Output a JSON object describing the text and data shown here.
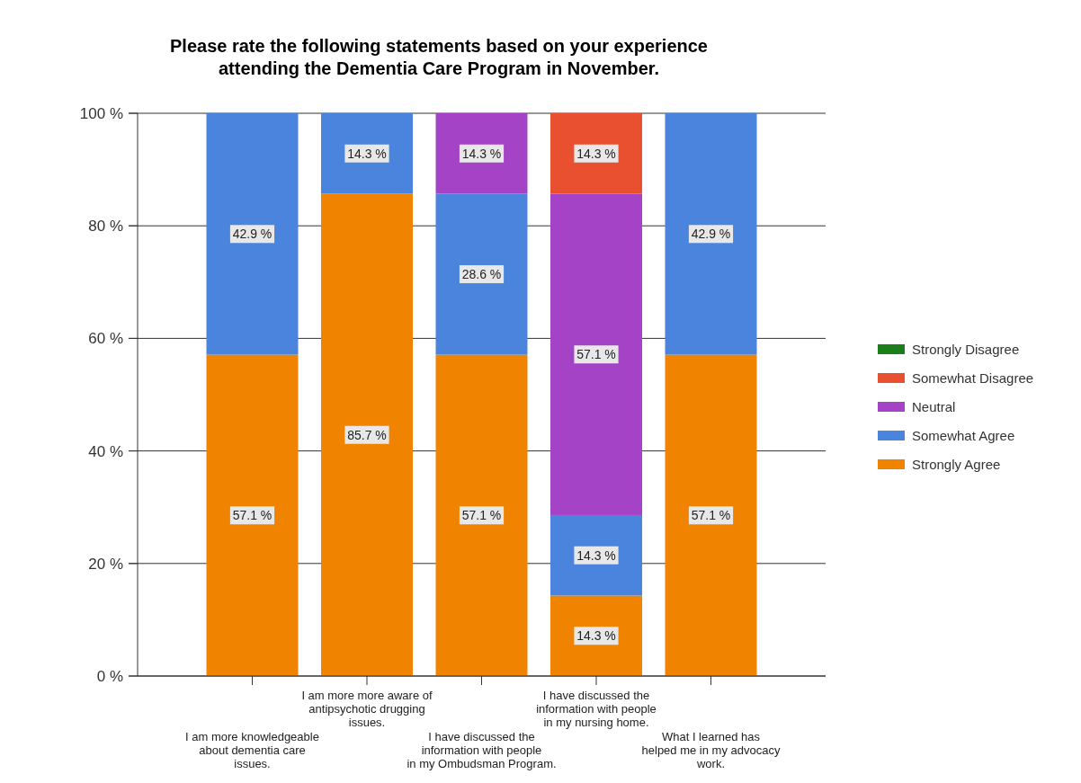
{
  "chart_data": {
    "type": "bar",
    "stacked": true,
    "title": "Please rate the following statements based on your experience attending the Dementia Care Program in November.",
    "categories": [
      "I am more knowledgeable about dementia care issues.",
      "I am more more aware of antipsychotic drugging issues.",
      "I have discussed the information with people in my Ombudsman Program.",
      "I have discussed the information with people in my nursing home.",
      "What I learned has helped me in my advocacy work."
    ],
    "series": [
      {
        "name": "Strongly Agree",
        "color": "#f08400",
        "values": [
          57.1,
          85.7,
          57.1,
          14.3,
          57.1
        ],
        "value_labels": [
          "57.1 %",
          "85.7 %",
          "57.1 %",
          "14.3 %",
          "57.1 %"
        ]
      },
      {
        "name": "Somewhat Agree",
        "color": "#4a84dc",
        "values": [
          42.9,
          14.3,
          28.6,
          14.3,
          42.9
        ],
        "value_labels": [
          "42.9 %",
          "14.3 %",
          "28.6 %",
          "14.3 %",
          "42.9 %"
        ]
      },
      {
        "name": "Neutral",
        "color": "#a443c6",
        "values": [
          null,
          null,
          14.3,
          57.1,
          null
        ],
        "value_labels": [
          null,
          null,
          "14.3 %",
          "57.1 %",
          null
        ]
      },
      {
        "name": "Somewhat Disagree",
        "color": "#e9502f",
        "values": [
          null,
          null,
          null,
          14.3,
          null
        ],
        "value_labels": [
          null,
          null,
          null,
          "14.3 %",
          null
        ]
      },
      {
        "name": "Strongly Disagree",
        "color": "#1a7f1a",
        "values": [
          null,
          null,
          null,
          null,
          null
        ]
      }
    ],
    "ylim": [
      0,
      100
    ],
    "yticks": [
      {
        "value": 0,
        "label": "0 %"
      },
      {
        "value": 20,
        "label": "20 %"
      },
      {
        "value": 40,
        "label": "40 %"
      },
      {
        "value": 60,
        "label": "60 %"
      },
      {
        "value": 80,
        "label": "80 %"
      },
      {
        "value": 100,
        "label": "100 %"
      }
    ],
    "grid": "y",
    "legend": "right"
  }
}
